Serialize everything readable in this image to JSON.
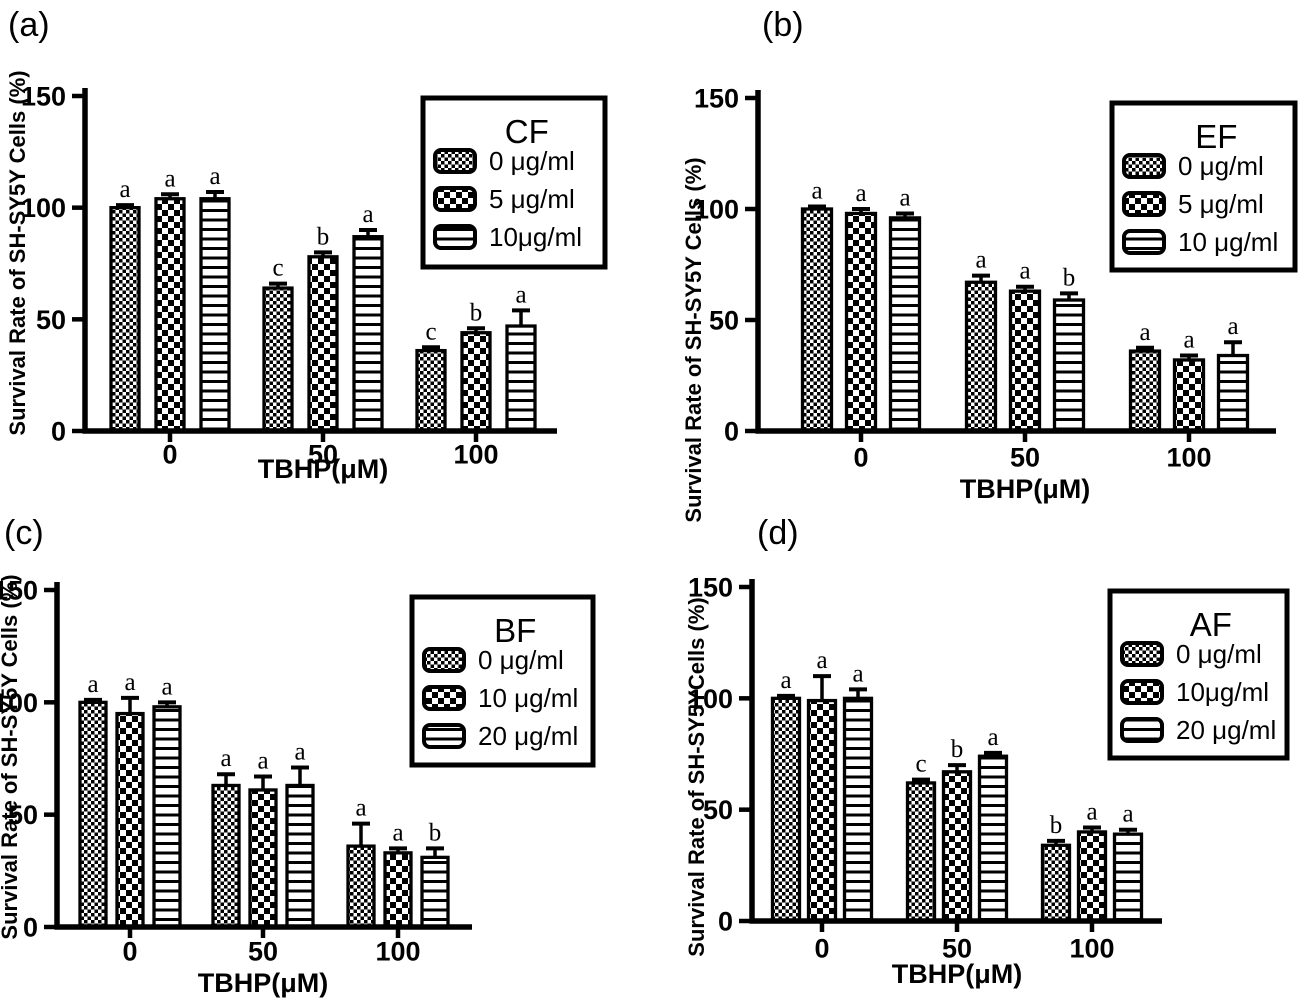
{
  "colors": {
    "ink": "#000000",
    "paper": "#ffffff"
  },
  "chart_data": [
    {
      "panel_label": "(a)",
      "type": "bar",
      "legend_title": "CF",
      "legend_position": "top-right",
      "ylabel": "Survival Rate of SH-SY5Y Cells (%)",
      "xlabel": "TBHP(μM)",
      "categories": [
        "0",
        "50",
        "100"
      ],
      "ylim": [
        0,
        150
      ],
      "yticks": [
        0,
        50,
        100,
        150
      ],
      "grid": false,
      "series": [
        {
          "name": "0 μg/ml",
          "pattern": "fine-check",
          "values": [
            100,
            64,
            36
          ],
          "errors": [
            1,
            2,
            1.5
          ],
          "sig_letters": [
            "a",
            "c",
            "c"
          ]
        },
        {
          "name": "5 μg/ml",
          "pattern": "coarse-check",
          "values": [
            104,
            78,
            44
          ],
          "errors": [
            2,
            2,
            2
          ],
          "sig_letters": [
            "a",
            "b",
            "b"
          ]
        },
        {
          "name": "10μg/ml",
          "pattern": "h-lines",
          "values": [
            104,
            87,
            47
          ],
          "errors": [
            3,
            3,
            7
          ],
          "sig_letters": [
            "a",
            "a",
            "a"
          ]
        }
      ]
    },
    {
      "panel_label": "(b)",
      "type": "bar",
      "legend_title": "EF",
      "legend_position": "top-right",
      "ylabel": "Survival Rate of SH-SY5Y Cells (%)",
      "xlabel": "TBHP(μM)",
      "categories": [
        "0",
        "50",
        "100"
      ],
      "ylim": [
        0,
        150
      ],
      "yticks": [
        0,
        50,
        100,
        150
      ],
      "grid": false,
      "series": [
        {
          "name": "0 μg/ml",
          "pattern": "fine-check",
          "values": [
            100,
            67,
            36
          ],
          "errors": [
            1,
            3,
            1.5
          ],
          "sig_letters": [
            "a",
            "a",
            "a"
          ]
        },
        {
          "name": "5 μg/ml",
          "pattern": "coarse-check",
          "values": [
            98,
            63,
            32
          ],
          "errors": [
            2,
            2,
            2
          ],
          "sig_letters": [
            "a",
            "a",
            "a"
          ]
        },
        {
          "name": "10 μg/ml",
          "pattern": "h-lines",
          "values": [
            96,
            59,
            34
          ],
          "errors": [
            2,
            3,
            6
          ],
          "sig_letters": [
            "a",
            "b",
            "a"
          ]
        }
      ]
    },
    {
      "panel_label": "(c)",
      "type": "bar",
      "legend_title": "BF",
      "legend_position": "top-right",
      "ylabel": "Survival Rate of SH-SY5Y Cells (%)",
      "xlabel": "TBHP(μM)",
      "categories": [
        "0",
        "50",
        "100"
      ],
      "ylim": [
        0,
        150
      ],
      "yticks": [
        0,
        50,
        100,
        150
      ],
      "grid": false,
      "series": [
        {
          "name": "0 μg/ml",
          "pattern": "fine-check",
          "values": [
            100,
            63,
            36
          ],
          "errors": [
            1,
            5,
            10
          ],
          "sig_letters": [
            "a",
            "a",
            "a"
          ]
        },
        {
          "name": "10 μg/ml",
          "pattern": "coarse-check",
          "values": [
            95,
            61,
            33
          ],
          "errors": [
            7,
            6,
            2
          ],
          "sig_letters": [
            "a",
            "a",
            "a"
          ]
        },
        {
          "name": "20 μg/ml",
          "pattern": "h-lines",
          "values": [
            98,
            63,
            31
          ],
          "errors": [
            2,
            8,
            4
          ],
          "sig_letters": [
            "a",
            "a",
            "b"
          ]
        }
      ]
    },
    {
      "panel_label": "(d)",
      "type": "bar",
      "legend_title": "AF",
      "legend_position": "top-right",
      "ylabel": "Survival Rate of SH-SY5YCells (%)",
      "xlabel": "TBHP(μM)",
      "categories": [
        "0",
        "50",
        "100"
      ],
      "ylim": [
        0,
        150
      ],
      "yticks": [
        0,
        50,
        100,
        150
      ],
      "grid": false,
      "series": [
        {
          "name": "0 μg/ml",
          "pattern": "fine-check",
          "values": [
            100,
            62,
            34
          ],
          "errors": [
            1,
            1.5,
            2
          ],
          "sig_letters": [
            "a",
            "c",
            "b"
          ]
        },
        {
          "name": "10μg/ml",
          "pattern": "coarse-check",
          "values": [
            99,
            67,
            40
          ],
          "errors": [
            11,
            3,
            2
          ],
          "sig_letters": [
            "a",
            "b",
            "a"
          ]
        },
        {
          "name": "20 μg/ml",
          "pattern": "h-lines",
          "values": [
            100,
            74,
            39
          ],
          "errors": [
            4,
            1.5,
            2
          ],
          "sig_letters": [
            "a",
            "a",
            "a"
          ]
        }
      ]
    }
  ]
}
